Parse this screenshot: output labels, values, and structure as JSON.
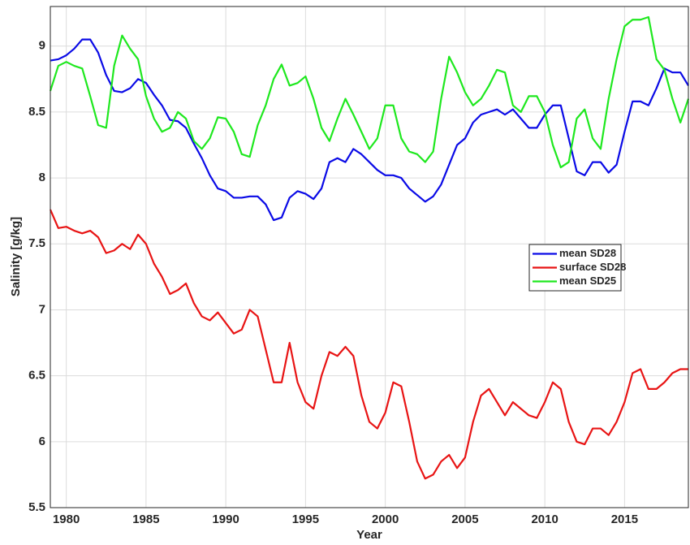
{
  "chart_data": {
    "type": "line",
    "xlabel": "Year",
    "ylabel": "Salinity [g/kg]",
    "x": [
      1979,
      1979.5,
      1980,
      1980.5,
      1981,
      1981.5,
      1982,
      1982.5,
      1983,
      1983.5,
      1984,
      1984.5,
      1985,
      1985.5,
      1986,
      1986.5,
      1987,
      1987.5,
      1988,
      1988.5,
      1989,
      1989.5,
      1990,
      1990.5,
      1991,
      1991.5,
      1992,
      1992.5,
      1993,
      1993.5,
      1994,
      1994.5,
      1995,
      1995.5,
      1996,
      1996.5,
      1997,
      1997.5,
      1998,
      1998.5,
      1999,
      1999.5,
      2000,
      2000.5,
      2001,
      2001.5,
      2002,
      2002.5,
      2003,
      2003.5,
      2004,
      2004.5,
      2005,
      2005.5,
      2006,
      2006.5,
      2007,
      2007.5,
      2008,
      2008.5,
      2009,
      2009.5,
      2010,
      2010.5,
      2011,
      2011.5,
      2012,
      2012.5,
      2013,
      2013.5,
      2014,
      2014.5,
      2015,
      2015.5,
      2016,
      2016.5,
      2017,
      2017.5,
      2018,
      2018.5,
      2019
    ],
    "series": [
      {
        "name": "mean SD28",
        "color": "#0a0ae6",
        "values": [
          8.89,
          8.9,
          8.93,
          8.98,
          9.05,
          9.05,
          8.95,
          8.78,
          8.66,
          8.65,
          8.68,
          8.75,
          8.72,
          8.63,
          8.55,
          8.44,
          8.43,
          8.38,
          8.26,
          8.15,
          8.02,
          7.92,
          7.9,
          7.85,
          7.85,
          7.86,
          7.86,
          7.8,
          7.68,
          7.7,
          7.85,
          7.9,
          7.88,
          7.84,
          7.92,
          8.12,
          8.15,
          8.12,
          8.22,
          8.18,
          8.12,
          8.06,
          8.02,
          8.02,
          8.0,
          7.92,
          7.87,
          7.82,
          7.86,
          7.95,
          8.1,
          8.25,
          8.3,
          8.42,
          8.48,
          8.5,
          8.52,
          8.48,
          8.52,
          8.45,
          8.38,
          8.38,
          8.48,
          8.55,
          8.55,
          8.3,
          8.05,
          8.02,
          8.12,
          8.12,
          8.04,
          8.1,
          8.35,
          8.58,
          8.58,
          8.55,
          8.68,
          8.83,
          8.8,
          8.8,
          8.7
        ]
      },
      {
        "name": "surface SD28",
        "color": "#e81414",
        "values": [
          7.76,
          7.62,
          7.63,
          7.6,
          7.58,
          7.6,
          7.55,
          7.43,
          7.45,
          7.5,
          7.46,
          7.57,
          7.5,
          7.35,
          7.25,
          7.12,
          7.15,
          7.2,
          7.05,
          6.95,
          6.92,
          6.98,
          6.9,
          6.82,
          6.85,
          7.0,
          6.95,
          6.7,
          6.45,
          6.45,
          6.75,
          6.45,
          6.3,
          6.25,
          6.5,
          6.68,
          6.65,
          6.72,
          6.65,
          6.35,
          6.15,
          6.1,
          6.22,
          6.45,
          6.42,
          6.15,
          5.85,
          5.72,
          5.75,
          5.85,
          5.9,
          5.8,
          5.88,
          6.15,
          6.35,
          6.4,
          6.3,
          6.2,
          6.3,
          6.25,
          6.2,
          6.18,
          6.3,
          6.45,
          6.4,
          6.15,
          6.0,
          5.98,
          6.1,
          6.1,
          6.05,
          6.15,
          6.3,
          6.52,
          6.55,
          6.4,
          6.4,
          6.45,
          6.52,
          6.55,
          6.55
        ]
      },
      {
        "name": "mean SD25",
        "color": "#1ee81e",
        "values": [
          8.66,
          8.85,
          8.88,
          8.85,
          8.83,
          8.62,
          8.4,
          8.38,
          8.85,
          9.08,
          8.98,
          8.9,
          8.62,
          8.45,
          8.35,
          8.38,
          8.5,
          8.45,
          8.28,
          8.22,
          8.3,
          8.46,
          8.45,
          8.35,
          8.18,
          8.16,
          8.4,
          8.55,
          8.75,
          8.86,
          8.7,
          8.72,
          8.77,
          8.6,
          8.38,
          8.28,
          8.45,
          8.6,
          8.48,
          8.35,
          8.22,
          8.3,
          8.55,
          8.55,
          8.3,
          8.2,
          8.18,
          8.12,
          8.2,
          8.6,
          8.92,
          8.8,
          8.65,
          8.55,
          8.6,
          8.7,
          8.82,
          8.8,
          8.55,
          8.5,
          8.62,
          8.62,
          8.5,
          8.25,
          8.08,
          8.12,
          8.45,
          8.52,
          8.3,
          8.22,
          8.6,
          8.9,
          9.15,
          9.2,
          9.2,
          9.22,
          8.9,
          8.82,
          8.6,
          8.42,
          8.6
        ]
      }
    ],
    "xlim": [
      1979,
      2019
    ],
    "xticks": [
      1980,
      1985,
      1990,
      1995,
      2000,
      2005,
      2010,
      2015
    ],
    "ylim": [
      5.5,
      9.3
    ],
    "yticks": [
      5.5,
      6,
      6.5,
      7,
      7.5,
      8,
      8.5,
      9
    ],
    "grid": true,
    "legend": "center right"
  }
}
